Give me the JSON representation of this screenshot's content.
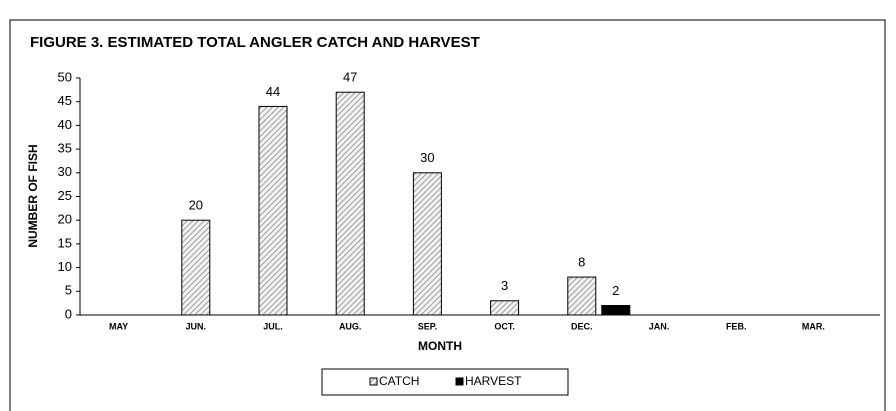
{
  "chart_data": {
    "type": "bar",
    "title": "FIGURE 3.  ESTIMATED TOTAL ANGLER CATCH AND HARVEST",
    "xlabel": "MONTH",
    "ylabel": "NUMBER OF FISH",
    "categories": [
      "MAY",
      "JUN.",
      "JUL.",
      "AUG.",
      "SEP.",
      "OCT.",
      "DEC.",
      "JAN.",
      "FEB.",
      "MAR."
    ],
    "series": [
      {
        "name": "CATCH",
        "color": "#d0d0d0",
        "values": [
          null,
          20,
          44,
          47,
          30,
          3,
          8,
          null,
          null,
          null
        ]
      },
      {
        "name": "HARVEST",
        "color": "#000000",
        "values": [
          null,
          null,
          null,
          null,
          null,
          null,
          2,
          null,
          null,
          null
        ]
      }
    ],
    "ylim": [
      0,
      50
    ],
    "yticks": [
      0,
      5,
      10,
      15,
      20,
      25,
      30,
      35,
      40,
      45,
      50
    ],
    "legend": "bottom"
  }
}
